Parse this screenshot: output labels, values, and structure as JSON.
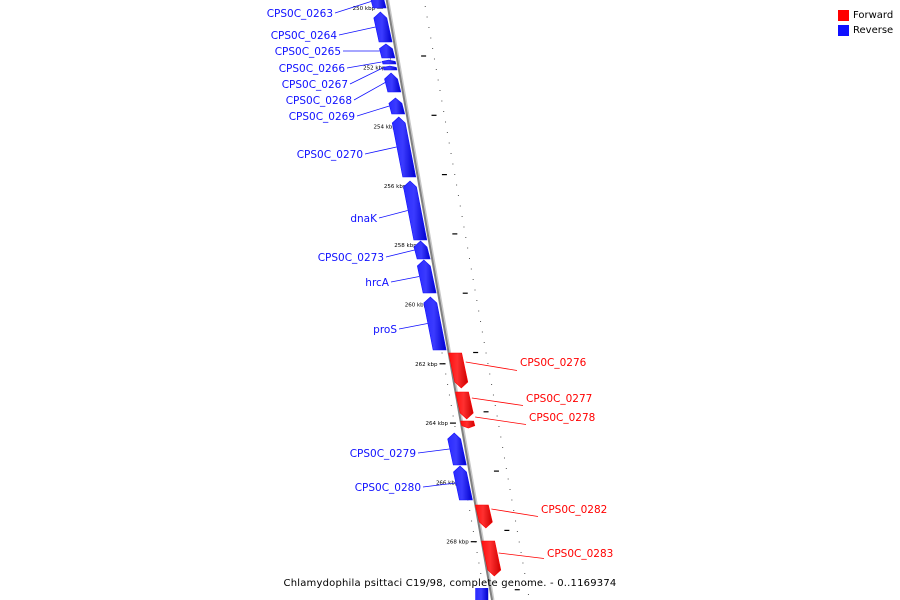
{
  "legend": {
    "forward_label": "Forward",
    "reverse_label": "Reverse",
    "forward_color": "#ff0000",
    "reverse_color": "#1010ff"
  },
  "caption": "Chlamydophila psittaci C19/98, complete genome. - 0..1169374",
  "ticks": [
    {
      "label": "250 kbp",
      "kbp": 250
    },
    {
      "label": "252 kbp",
      "kbp": 252
    },
    {
      "label": "254 kbp",
      "kbp": 254
    },
    {
      "label": "256 kbp",
      "kbp": 256
    },
    {
      "label": "258 kbp",
      "kbp": 258
    },
    {
      "label": "260 kbp",
      "kbp": 260
    },
    {
      "label": "262 kbp",
      "kbp": 262
    },
    {
      "label": "264 kbp",
      "kbp": 264
    },
    {
      "label": "266 kbp",
      "kbp": 266
    },
    {
      "label": "268 kbp",
      "kbp": 268
    }
  ],
  "genes": [
    {
      "name": "CPS0C_0263",
      "strand": "reverse"
    },
    {
      "name": "CPS0C_0264",
      "strand": "reverse"
    },
    {
      "name": "CPS0C_0265",
      "strand": "reverse"
    },
    {
      "name": "CPS0C_0266",
      "strand": "reverse"
    },
    {
      "name": "CPS0C_0267",
      "strand": "reverse"
    },
    {
      "name": "CPS0C_0268",
      "strand": "reverse"
    },
    {
      "name": "CPS0C_0269",
      "strand": "reverse"
    },
    {
      "name": "CPS0C_0270",
      "strand": "reverse"
    },
    {
      "name": "dnaK",
      "strand": "reverse"
    },
    {
      "name": "CPS0C_0273",
      "strand": "reverse"
    },
    {
      "name": "hrcA",
      "strand": "reverse"
    },
    {
      "name": "proS",
      "strand": "reverse"
    },
    {
      "name": "CPS0C_0276",
      "strand": "forward"
    },
    {
      "name": "CPS0C_0277",
      "strand": "forward"
    },
    {
      "name": "CPS0C_0278",
      "strand": "forward"
    },
    {
      "name": "CPS0C_0279",
      "strand": "reverse"
    },
    {
      "name": "CPS0C_0280",
      "strand": "reverse"
    },
    {
      "name": "CPS0C_0282",
      "strand": "forward"
    },
    {
      "name": "CPS0C_0283",
      "strand": "forward"
    }
  ]
}
